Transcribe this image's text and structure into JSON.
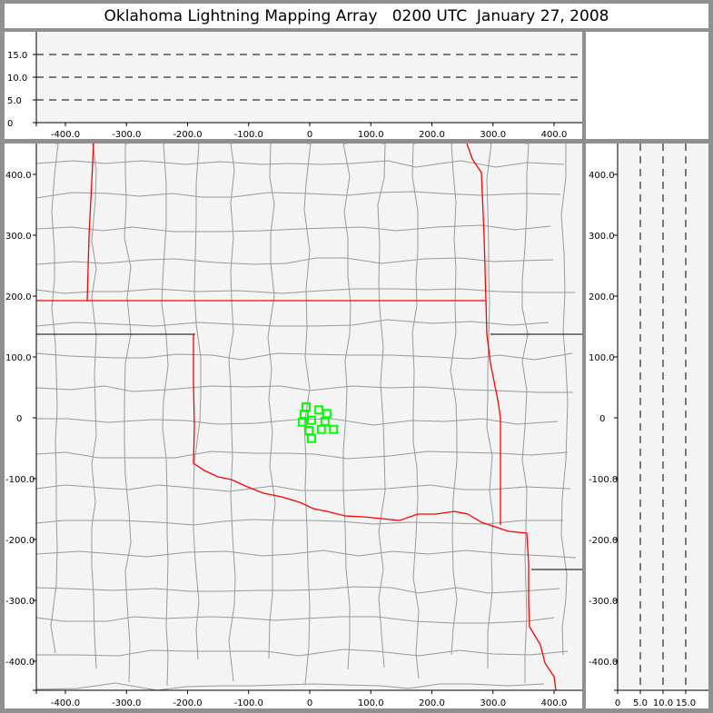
{
  "title": "Oklahoma Lightning Mapping Array   0200 UTC  January 27, 2008",
  "colors": {
    "state_border": "#ff0000",
    "county_border": "#999999",
    "source_marker": "#00ff00",
    "plot_background": "#f4f4f4",
    "frame": "#8f8f8f"
  },
  "chart_data": [
    {
      "panel": "altitude-vs-east-west",
      "type": "scatter",
      "xlim": [
        -450,
        450
      ],
      "ylim": [
        0,
        20
      ],
      "xticks": [
        "-400.0",
        "-300.0",
        "-200.0",
        "-100.0",
        "0",
        "100.0",
        "200.0",
        "300.0",
        "400.0"
      ],
      "xtick_values": [
        -400,
        -300,
        -200,
        -100,
        0,
        100,
        200,
        300,
        400
      ],
      "yticks": [
        "0",
        "5.0",
        "10.0",
        "15.0"
      ],
      "ytick_values": [
        0,
        5,
        10,
        15
      ],
      "gridlines": "dashed at 5, 10, 15",
      "points": []
    },
    {
      "panel": "plan-view",
      "type": "scatter",
      "xlim": [
        -450,
        450
      ],
      "ylim": [
        -450,
        450
      ],
      "xticks": [
        "-400.0",
        "-300.0",
        "-200.0",
        "-100.0",
        "0",
        "100.0",
        "200.0",
        "300.0",
        "400.0"
      ],
      "xtick_values": [
        -400,
        -300,
        -200,
        -100,
        0,
        100,
        200,
        300,
        400
      ],
      "yticks": [
        "-400.0",
        "-300.0",
        "-200.0",
        "-100.0",
        "0",
        "100.0",
        "200.0",
        "300.0",
        "400.0"
      ],
      "ytick_values": [
        -400,
        -300,
        -200,
        -100,
        0,
        100,
        200,
        300,
        400
      ],
      "marker": "open green square",
      "points": [
        [
          -6,
          18
        ],
        [
          -9,
          6
        ],
        [
          15,
          13
        ],
        [
          28,
          7
        ],
        [
          -12,
          -7
        ],
        [
          3,
          -4
        ],
        [
          25,
          -6
        ],
        [
          -1,
          -21
        ],
        [
          19,
          -19
        ],
        [
          39,
          -19
        ],
        [
          3,
          -34
        ]
      ]
    },
    {
      "panel": "north-south-vs-altitude",
      "type": "scatter",
      "xlim": [
        0,
        20
      ],
      "ylim": [
        -450,
        450
      ],
      "xticks": [
        "0",
        "5.0",
        "10.0",
        "15.0"
      ],
      "xtick_values": [
        0,
        5,
        10,
        15
      ],
      "yticks": [
        "-400.0",
        "-300.0",
        "-200.0",
        "-100.0",
        "0",
        "100.0",
        "200.0",
        "300.0",
        "400.0"
      ],
      "ytick_values": [
        -400,
        -300,
        -200,
        -100,
        0,
        100,
        200,
        300,
        400
      ],
      "gridlines": "dashed at 5, 10, 15",
      "points": []
    }
  ]
}
